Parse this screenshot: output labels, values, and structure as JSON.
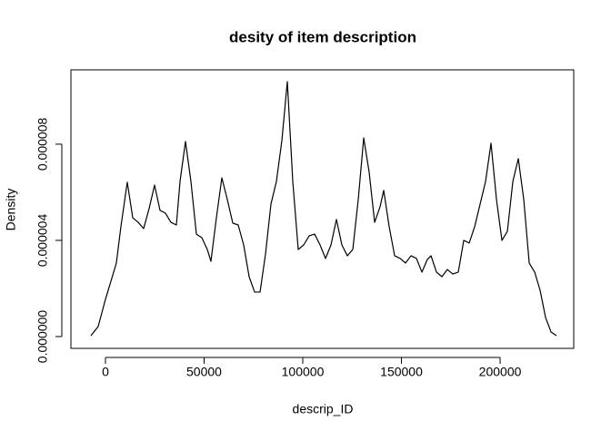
{
  "chart_data": {
    "type": "line",
    "title": "desity of item description",
    "xlabel": "descrip_ID",
    "ylabel": "Density",
    "x": [
      -7373,
      -3687,
      0,
      2765,
      5530,
      7834,
      11060,
      13825,
      16590,
      19355,
      22120,
      24885,
      27650,
      30415,
      33180,
      35945,
      37788,
      40553,
      43318,
      46083,
      48848,
      51613,
      53456,
      56221,
      58986,
      61751,
      64516,
      67281,
      70046,
      72811,
      75576,
      78341,
      81106,
      83871,
      86636,
      89401,
      92166,
      94931,
      97696,
      100461,
      103226,
      105991,
      108756,
      111521,
      114286,
      117051,
      119816,
      122581,
      125346,
      128111,
      130876,
      133641,
      136406,
      139171,
      141014,
      143779,
      146544,
      149309,
      152074,
      154839,
      157604,
      160369,
      163134,
      164977,
      167742,
      170507,
      173272,
      176037,
      178802,
      181567,
      184332,
      187097,
      189862,
      192627,
      195392,
      198157,
      200922,
      203687,
      206452,
      209217,
      211982,
      214747,
      217512,
      220277,
      223042,
      225807,
      228571
    ],
    "series": [
      {
        "color": "#000000",
        "values": [
          4e-08,
          4.2e-07,
          1.55e-06,
          2.3e-06,
          3.06e-06,
          4.57e-06,
          6.42e-06,
          4.94e-06,
          4.75e-06,
          4.49e-06,
          5.32e-06,
          6.3e-06,
          5.25e-06,
          5.13e-06,
          4.75e-06,
          4.64e-06,
          6.45e-06,
          8.11e-06,
          6.45e-06,
          4.26e-06,
          4.11e-06,
          3.62e-06,
          3.13e-06,
          4.94e-06,
          6.6e-06,
          5.7e-06,
          4.72e-06,
          4.64e-06,
          3.81e-06,
          2.49e-06,
          1.85e-06,
          1.85e-06,
          3.43e-06,
          5.51e-06,
          6.45e-06,
          8.15e-06,
          1.06e-05,
          6.45e-06,
          3.62e-06,
          3.81e-06,
          4.19e-06,
          4.26e-06,
          3.81e-06,
          3.25e-06,
          3.81e-06,
          4.87e-06,
          3.81e-06,
          3.36e-06,
          3.62e-06,
          5.7e-06,
          8.26e-06,
          6.83e-06,
          4.75e-06,
          5.4e-06,
          6.08e-06,
          4.57e-06,
          3.36e-06,
          3.25e-06,
          3.06e-06,
          3.36e-06,
          3.25e-06,
          2.68e-06,
          3.21e-06,
          3.36e-06,
          2.68e-06,
          2.49e-06,
          2.79e-06,
          2.6e-06,
          2.68e-06,
          4e-06,
          3.89e-06,
          4.57e-06,
          5.51e-06,
          6.45e-06,
          8.04e-06,
          5.7e-06,
          4e-06,
          4.38e-06,
          6.45e-06,
          7.4e-06,
          5.7e-06,
          3.06e-06,
          2.68e-06,
          1.92e-06,
          7.9e-07,
          1.9e-07,
          4e-08
        ]
      }
    ],
    "xlim": [
      -17500,
      237300
    ],
    "ylim": [
      -4.9e-07,
      1.109e-05
    ],
    "xticks": [
      0,
      50000,
      100000,
      150000,
      200000
    ],
    "yticks": [
      {
        "value": 0,
        "label": "0.000000"
      },
      {
        "value": 4e-06,
        "label": "0.000004"
      },
      {
        "value": 8e-06,
        "label": "0.000008"
      }
    ]
  }
}
